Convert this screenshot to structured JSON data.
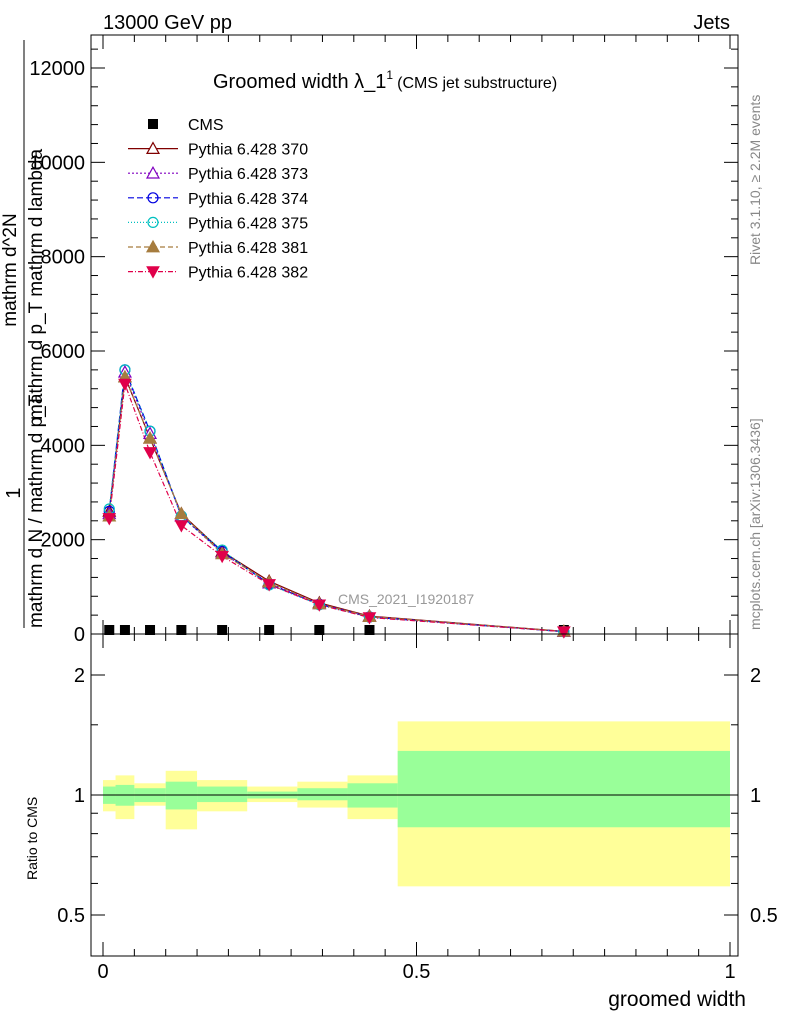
{
  "header": {
    "left": "13000 GeV pp",
    "right": "Jets"
  },
  "title": {
    "main": "Groomed width λ_1",
    "sup": "1",
    "sub": "(CMS jet substructure)"
  },
  "side": {
    "rivet": "Rivet 3.1.10, ≥ 2.2M events",
    "mcplots": "mcplots.cern.ch [arXiv:1306.3436]"
  },
  "watermark": "CMS_2021_I1920187",
  "ylabel_main": {
    "one": "1",
    "den": "mathrm d N / mathrm d p_T",
    "num1": "mathrm d^2N",
    "num2": "mathrm d p_T mathrm d lambda"
  },
  "ylabel_ratio": "Ratio to CMS",
  "xlabel": "groomed width",
  "colors": {
    "band_inner": "#99ff99",
    "band_outer": "#ffff99",
    "s370": "#800000",
    "s373": "#8000c0",
    "s374": "#0000e0",
    "s375": "#00c0c0",
    "s381": "#a67c3f",
    "s382": "#e0004a"
  },
  "chart_data": [
    {
      "type": "line",
      "x": [
        0.01,
        0.035,
        0.075,
        0.125,
        0.19,
        0.265,
        0.345,
        0.425,
        0.735
      ],
      "ylim": [
        0,
        12700
      ],
      "yticks": [
        0,
        2000,
        4000,
        6000,
        8000,
        10000,
        12000
      ],
      "series": [
        {
          "name": "CMS",
          "marker": "square",
          "values": [
            5,
            5,
            5,
            5,
            5,
            5,
            5,
            5,
            5
          ]
        },
        {
          "name": "Pythia 6.428 370",
          "marker": "triangle-open",
          "values": [
            2600,
            5450,
            4150,
            2550,
            1750,
            1120,
            660,
            380,
            55
          ]
        },
        {
          "name": "Pythia 6.428 373",
          "marker": "triangle-open",
          "values": [
            2550,
            5550,
            4250,
            2500,
            1720,
            1080,
            640,
            370,
            50
          ]
        },
        {
          "name": "Pythia 6.428 374",
          "marker": "circle-open",
          "values": [
            2600,
            5600,
            4300,
            2500,
            1750,
            1060,
            630,
            360,
            50
          ]
        },
        {
          "name": "Pythia 6.428 375",
          "marker": "circle-open",
          "values": [
            2650,
            5600,
            4300,
            2500,
            1780,
            1040,
            620,
            360,
            50
          ]
        },
        {
          "name": "Pythia 6.428 381",
          "marker": "triangle-filled",
          "values": [
            2500,
            5450,
            4150,
            2550,
            1700,
            1100,
            640,
            370,
            55
          ]
        },
        {
          "name": "Pythia 6.428 382",
          "marker": "triangle-down-filled",
          "values": [
            2450,
            5300,
            3850,
            2300,
            1650,
            1050,
            620,
            350,
            50
          ]
        }
      ]
    },
    {
      "type": "area",
      "xlabel": "groomed width",
      "ylabel": "Ratio to CMS",
      "xlim": [
        -0.02,
        1.0
      ],
      "ylim": [
        0.3,
        2.3
      ],
      "xticks": [
        0,
        0.5,
        1
      ],
      "yticks": [
        0.5,
        1,
        2
      ],
      "bins": [
        [
          0.0,
          0.02,
          0.95,
          1.05,
          0.91,
          1.09
        ],
        [
          0.02,
          0.05,
          0.94,
          1.06,
          0.87,
          1.12
        ],
        [
          0.05,
          0.1,
          0.96,
          1.04,
          0.94,
          1.07
        ],
        [
          0.1,
          0.15,
          0.92,
          1.08,
          0.82,
          1.15
        ],
        [
          0.15,
          0.23,
          0.96,
          1.05,
          0.91,
          1.09
        ],
        [
          0.23,
          0.31,
          0.98,
          1.02,
          0.96,
          1.05
        ],
        [
          0.31,
          0.39,
          0.97,
          1.04,
          0.93,
          1.08
        ],
        [
          0.39,
          0.47,
          0.93,
          1.07,
          0.87,
          1.12
        ],
        [
          0.47,
          1.0,
          0.83,
          1.29,
          0.59,
          1.53
        ]
      ]
    }
  ]
}
